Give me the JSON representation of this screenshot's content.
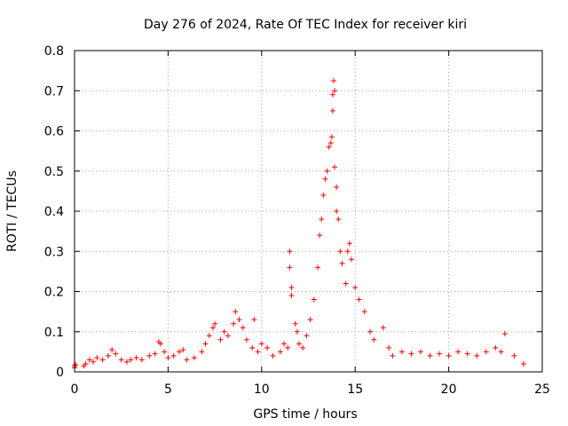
{
  "chart_data": {
    "type": "scatter",
    "title": "Day 276 of 2024, Rate Of TEC Index for receiver kiri",
    "xlabel": "GPS time / hours",
    "ylabel": "ROTI / TECUs",
    "xlim": [
      0,
      25
    ],
    "ylim": [
      0,
      0.8
    ],
    "x_ticks": [
      "0",
      "5",
      "10",
      "15",
      "20",
      "25"
    ],
    "y_ticks": [
      "0",
      "0.1",
      "0.2",
      "0.3",
      "0.4",
      "0.5",
      "0.6",
      "0.7",
      "0.8"
    ],
    "grid": true,
    "marker": "plus",
    "series_color": "#ff0000",
    "points": [
      [
        0.0,
        0.015
      ],
      [
        0.0,
        0.01
      ],
      [
        0.05,
        0.018
      ],
      [
        0.5,
        0.015
      ],
      [
        0.6,
        0.02
      ],
      [
        0.8,
        0.03
      ],
      [
        1.0,
        0.025
      ],
      [
        1.2,
        0.035
      ],
      [
        1.5,
        0.03
      ],
      [
        1.8,
        0.04
      ],
      [
        2.0,
        0.055
      ],
      [
        2.2,
        0.045
      ],
      [
        2.5,
        0.03
      ],
      [
        2.8,
        0.025
      ],
      [
        3.0,
        0.03
      ],
      [
        3.3,
        0.035
      ],
      [
        3.6,
        0.03
      ],
      [
        4.0,
        0.04
      ],
      [
        4.3,
        0.045
      ],
      [
        4.5,
        0.075
      ],
      [
        4.6,
        0.07
      ],
      [
        4.8,
        0.05
      ],
      [
        5.0,
        0.035
      ],
      [
        5.3,
        0.04
      ],
      [
        5.6,
        0.05
      ],
      [
        5.8,
        0.055
      ],
      [
        6.0,
        0.03
      ],
      [
        6.4,
        0.035
      ],
      [
        6.8,
        0.05
      ],
      [
        7.0,
        0.07
      ],
      [
        7.2,
        0.09
      ],
      [
        7.4,
        0.11
      ],
      [
        7.5,
        0.12
      ],
      [
        7.8,
        0.08
      ],
      [
        8.0,
        0.1
      ],
      [
        8.2,
        0.09
      ],
      [
        8.5,
        0.12
      ],
      [
        8.6,
        0.15
      ],
      [
        8.8,
        0.13
      ],
      [
        9.0,
        0.11
      ],
      [
        9.2,
        0.08
      ],
      [
        9.5,
        0.06
      ],
      [
        9.6,
        0.13
      ],
      [
        9.8,
        0.05
      ],
      [
        10.0,
        0.07
      ],
      [
        10.3,
        0.06
      ],
      [
        10.6,
        0.04
      ],
      [
        11.0,
        0.05
      ],
      [
        11.2,
        0.07
      ],
      [
        11.4,
        0.06
      ],
      [
        11.5,
        0.3
      ],
      [
        11.5,
        0.26
      ],
      [
        11.6,
        0.21
      ],
      [
        11.6,
        0.19
      ],
      [
        11.8,
        0.12
      ],
      [
        11.9,
        0.1
      ],
      [
        12.0,
        0.07
      ],
      [
        12.2,
        0.06
      ],
      [
        12.4,
        0.09
      ],
      [
        12.6,
        0.13
      ],
      [
        12.8,
        0.18
      ],
      [
        13.0,
        0.26
      ],
      [
        13.1,
        0.34
      ],
      [
        13.2,
        0.38
      ],
      [
        13.3,
        0.44
      ],
      [
        13.4,
        0.48
      ],
      [
        13.5,
        0.5
      ],
      [
        13.6,
        0.56
      ],
      [
        13.7,
        0.57
      ],
      [
        13.75,
        0.585
      ],
      [
        13.8,
        0.65
      ],
      [
        13.8,
        0.69
      ],
      [
        13.85,
        0.725
      ],
      [
        13.9,
        0.7
      ],
      [
        13.9,
        0.51
      ],
      [
        14.0,
        0.46
      ],
      [
        14.0,
        0.4
      ],
      [
        14.1,
        0.38
      ],
      [
        14.2,
        0.3
      ],
      [
        14.3,
        0.27
      ],
      [
        14.5,
        0.22
      ],
      [
        14.6,
        0.3
      ],
      [
        14.7,
        0.32
      ],
      [
        14.8,
        0.28
      ],
      [
        15.0,
        0.21
      ],
      [
        15.2,
        0.18
      ],
      [
        15.5,
        0.15
      ],
      [
        15.8,
        0.1
      ],
      [
        16.0,
        0.08
      ],
      [
        16.5,
        0.11
      ],
      [
        16.8,
        0.06
      ],
      [
        17.0,
        0.04
      ],
      [
        17.5,
        0.05
      ],
      [
        18.0,
        0.045
      ],
      [
        18.5,
        0.05
      ],
      [
        19.0,
        0.04
      ],
      [
        19.5,
        0.045
      ],
      [
        20.0,
        0.04
      ],
      [
        20.5,
        0.05
      ],
      [
        21.0,
        0.045
      ],
      [
        21.5,
        0.04
      ],
      [
        22.0,
        0.05
      ],
      [
        22.5,
        0.06
      ],
      [
        22.8,
        0.05
      ],
      [
        23.0,
        0.095
      ],
      [
        23.5,
        0.04
      ],
      [
        24.0,
        0.02
      ]
    ]
  }
}
